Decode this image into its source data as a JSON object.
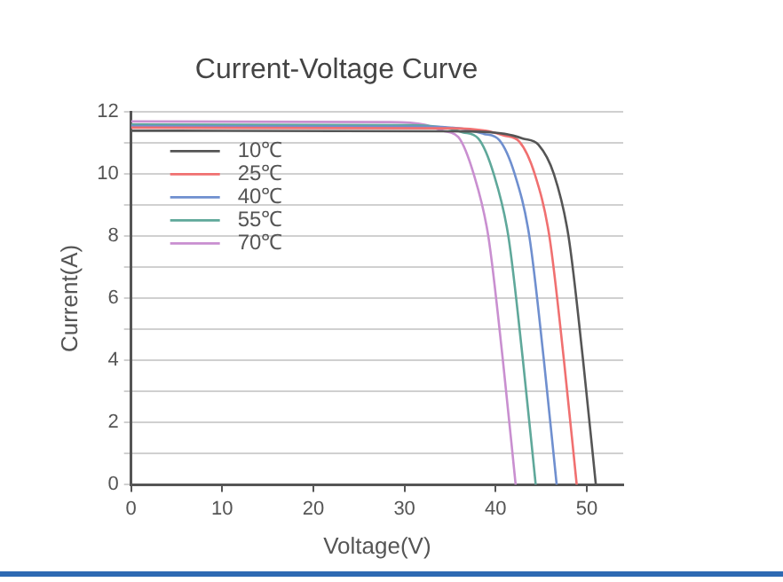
{
  "chart_data": {
    "type": "line",
    "title": "Current-Voltage Curve",
    "xlabel": "Voltage(V)",
    "ylabel": "Current(A)",
    "xlim": [
      0,
      54
    ],
    "xticks": [
      0,
      10,
      20,
      30,
      40,
      50
    ],
    "ylim": [
      0,
      12
    ],
    "yticks": [
      0,
      {
        "value": 1,
        "label": null
      },
      2,
      {
        "value": 3,
        "label": null
      },
      4,
      {
        "value": 5,
        "label": null
      },
      6,
      {
        "value": 7,
        "label": null
      },
      8,
      {
        "value": 9,
        "label": null
      },
      10,
      {
        "value": 11,
        "label": null
      },
      12
    ],
    "grid": "y",
    "legend": "top left",
    "marker": "none",
    "line_style": "solid",
    "series": [
      {
        "name": "10℃",
        "color": "#555555",
        "x": [
          0,
          37,
          41,
          43,
          44.7,
          46.4,
          48,
          49.6,
          51
        ],
        "values": [
          11.4,
          11.38,
          11.3,
          11.15,
          10.95,
          10,
          8,
          4,
          0
        ]
      },
      {
        "name": "25℃",
        "color": "#f07070",
        "x": [
          0,
          34.9,
          38.9,
          40.9,
          42.6,
          44.3,
          45.9,
          47.5,
          48.9
        ],
        "values": [
          11.5,
          11.48,
          11.4,
          11.25,
          11.05,
          10,
          8,
          4,
          0
        ]
      },
      {
        "name": "40℃",
        "color": "#6f8fcf",
        "x": [
          0,
          32.7,
          36.7,
          38.7,
          40.4,
          42.1,
          43.7,
          45.3,
          46.7
        ],
        "values": [
          11.55,
          11.53,
          11.45,
          11.3,
          11.1,
          10,
          8,
          4,
          0
        ]
      },
      {
        "name": "55℃",
        "color": "#5fa89a",
        "x": [
          0,
          30.4,
          34.4,
          36.4,
          38.1,
          39.8,
          41.4,
          43,
          44.4
        ],
        "values": [
          11.6,
          11.58,
          11.5,
          11.35,
          11.15,
          10,
          8,
          4,
          0
        ]
      },
      {
        "name": "70℃",
        "color": "#c98fd0",
        "x": [
          0,
          28.2,
          32.2,
          34.2,
          35.9,
          37.6,
          39.2,
          40.8,
          42.2
        ],
        "values": [
          11.7,
          11.68,
          11.6,
          11.4,
          11.2,
          10,
          8,
          4,
          0
        ]
      }
    ]
  }
}
